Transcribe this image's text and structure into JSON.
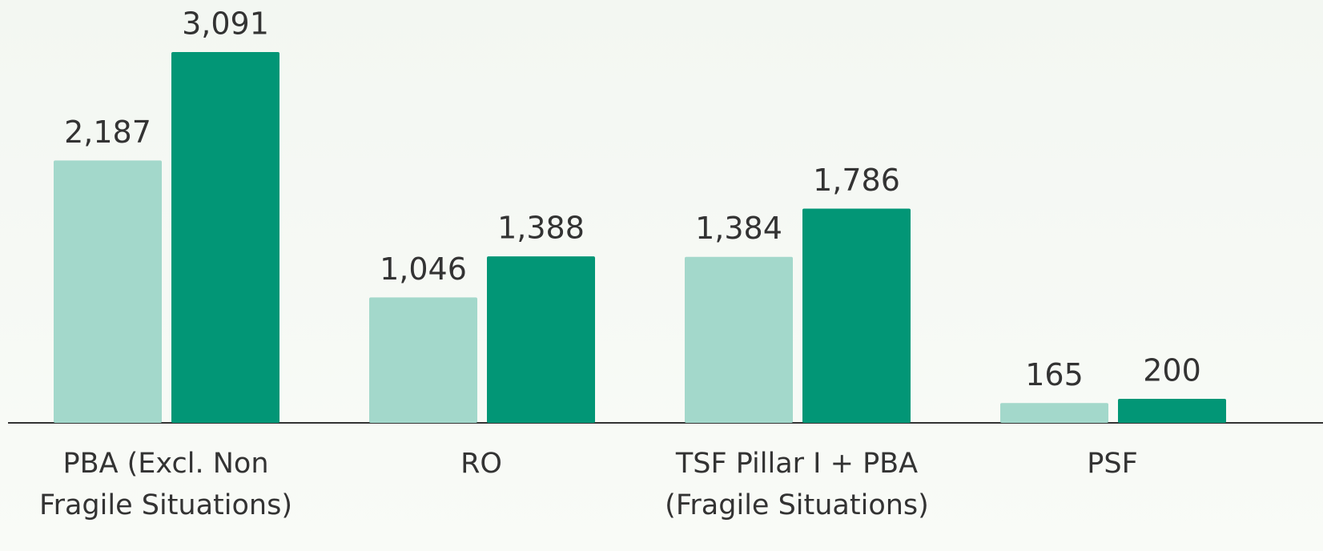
{
  "chart_data": {
    "type": "bar",
    "categories": [
      [
        "PBA (Excl. Non",
        "Fragile Situations)"
      ],
      [
        "RO"
      ],
      [
        "TSF Pillar I + PBA",
        "(Fragile Situations)"
      ],
      [
        "PSF"
      ]
    ],
    "series": [
      {
        "color": "#a3d8cb",
        "values": [
          2187,
          1046,
          1384,
          165
        ],
        "value_labels": [
          "2,187",
          "1,046",
          "1,384",
          "165"
        ]
      },
      {
        "color": "#029676",
        "values": [
          3091,
          1388,
          1786,
          200
        ],
        "value_labels": [
          "3,091",
          "1,388",
          "1,786",
          "200"
        ]
      }
    ]
  }
}
